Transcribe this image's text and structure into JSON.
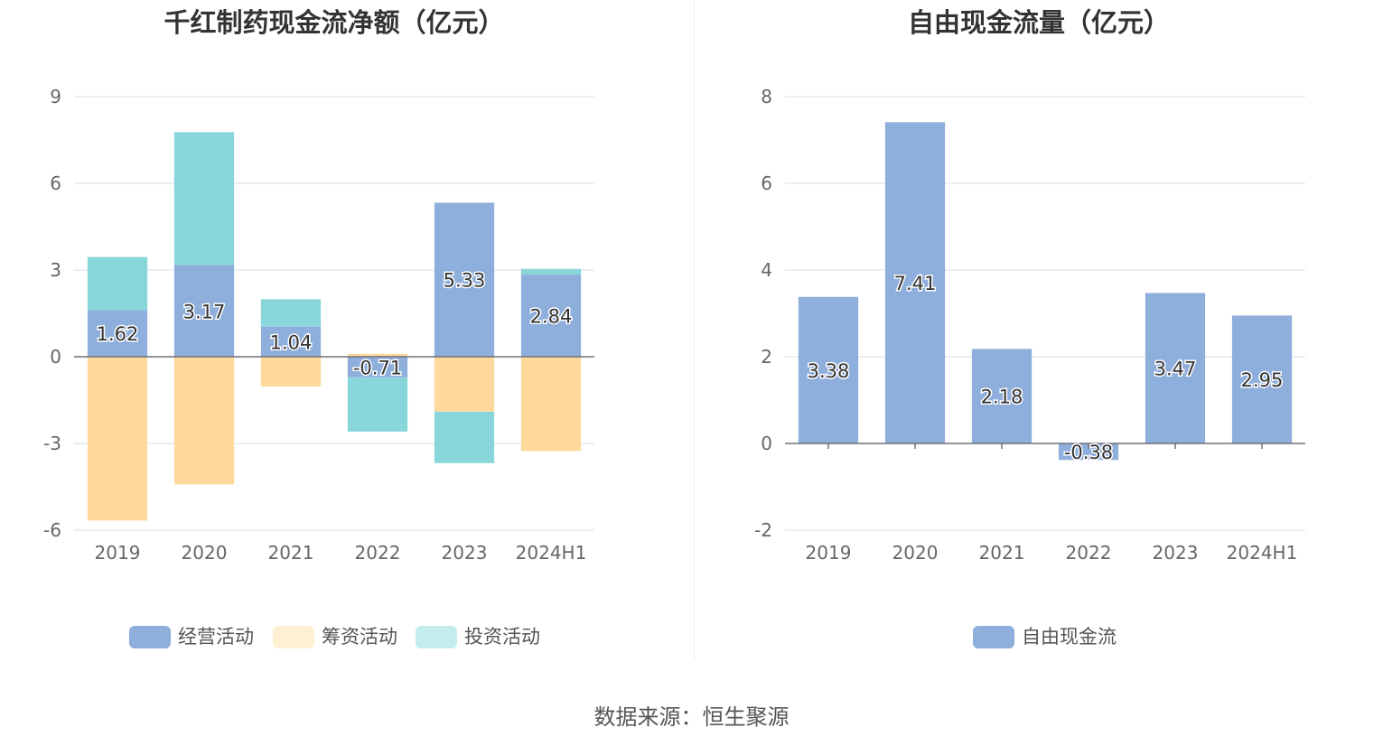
{
  "chart_data": [
    {
      "type": "bar",
      "stacked": true,
      "title": "千红制药现金流净额（亿元）",
      "categories": [
        "2019",
        "2020",
        "2021",
        "2022",
        "2023",
        "2024H1"
      ],
      "ylim": [
        -6,
        9
      ],
      "yticks": [
        9,
        6,
        3,
        0,
        -3,
        -6
      ],
      "grid": true,
      "legend_position": "bottom",
      "series": [
        {
          "name": "经营活动",
          "color": "#8eaedc",
          "values": [
            1.62,
            3.17,
            1.04,
            -0.71,
            5.33,
            2.84
          ],
          "labels": [
            "1.62",
            "3.17",
            "1.04",
            "-0.71",
            "5.33",
            "2.84"
          ]
        },
        {
          "name": "筹资活动",
          "color": "#ffd99b",
          "values": [
            -5.67,
            -4.42,
            -1.03,
            0.1,
            -1.9,
            -3.26
          ]
        },
        {
          "name": "投资活动",
          "color": "#88d6da",
          "values": [
            1.83,
            4.6,
            0.95,
            -1.88,
            -1.78,
            0.2
          ]
        }
      ]
    },
    {
      "type": "bar",
      "title": "自由现金流量（亿元）",
      "categories": [
        "2019",
        "2020",
        "2021",
        "2022",
        "2023",
        "2024H1"
      ],
      "ylim": [
        -2,
        8
      ],
      "yticks": [
        8,
        6,
        4,
        2,
        0,
        -2
      ],
      "grid": true,
      "legend_position": "bottom",
      "series": [
        {
          "name": "自由现金流",
          "color": "#8eaedc",
          "values": [
            3.38,
            7.41,
            2.18,
            -0.38,
            3.47,
            2.95
          ],
          "labels": [
            "3.38",
            "7.41",
            "2.18",
            "-0.38",
            "3.47",
            "2.95"
          ]
        }
      ]
    }
  ],
  "source": "数据来源：恒生聚源",
  "colors": {
    "grid": "#e6e9f2",
    "axis": "#6e7079",
    "legend_investing_swatch": "#c4ecee",
    "legend_financing_swatch": "#fff0d4"
  }
}
